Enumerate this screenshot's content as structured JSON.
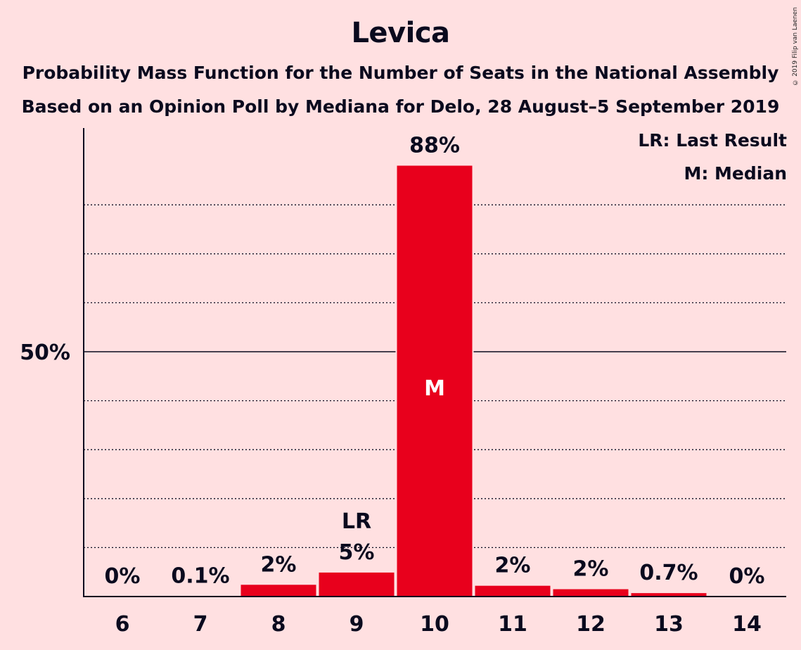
{
  "chart_data": {
    "type": "bar",
    "title": "Levica",
    "subtitle": [
      "Probability Mass Function for the Number of Seats in the National Assembly",
      "Based on an Opinion Poll by Mediana for Delo, 28 August–5 September 2019"
    ],
    "copyright": "© 2019 Filip van Laenen",
    "categories": [
      "6",
      "7",
      "8",
      "9",
      "10",
      "11",
      "12",
      "13",
      "14"
    ],
    "values": [
      0,
      0.1,
      2.4,
      4.9,
      88,
      2.2,
      1.5,
      0.7,
      0
    ],
    "value_labels": [
      "0%",
      "0.1%",
      "2%",
      "5%",
      "88%",
      "2%",
      "2%",
      "0.7%",
      "0%"
    ],
    "last_result_category": "9",
    "last_result_label": "LR",
    "median_category": "10",
    "median_label": "M",
    "ylim": [
      0,
      95
    ],
    "y_ticks": [
      {
        "value": 50,
        "label": "50%"
      }
    ],
    "minor_gridlines": [
      10,
      20,
      30,
      40,
      60,
      70,
      80
    ],
    "grid": "dotted minor, solid at 50%",
    "bar_color": "#E8001C",
    "legend": {
      "position": "top-right",
      "entries": [
        "LR: Last Result",
        "M: Median"
      ]
    }
  }
}
